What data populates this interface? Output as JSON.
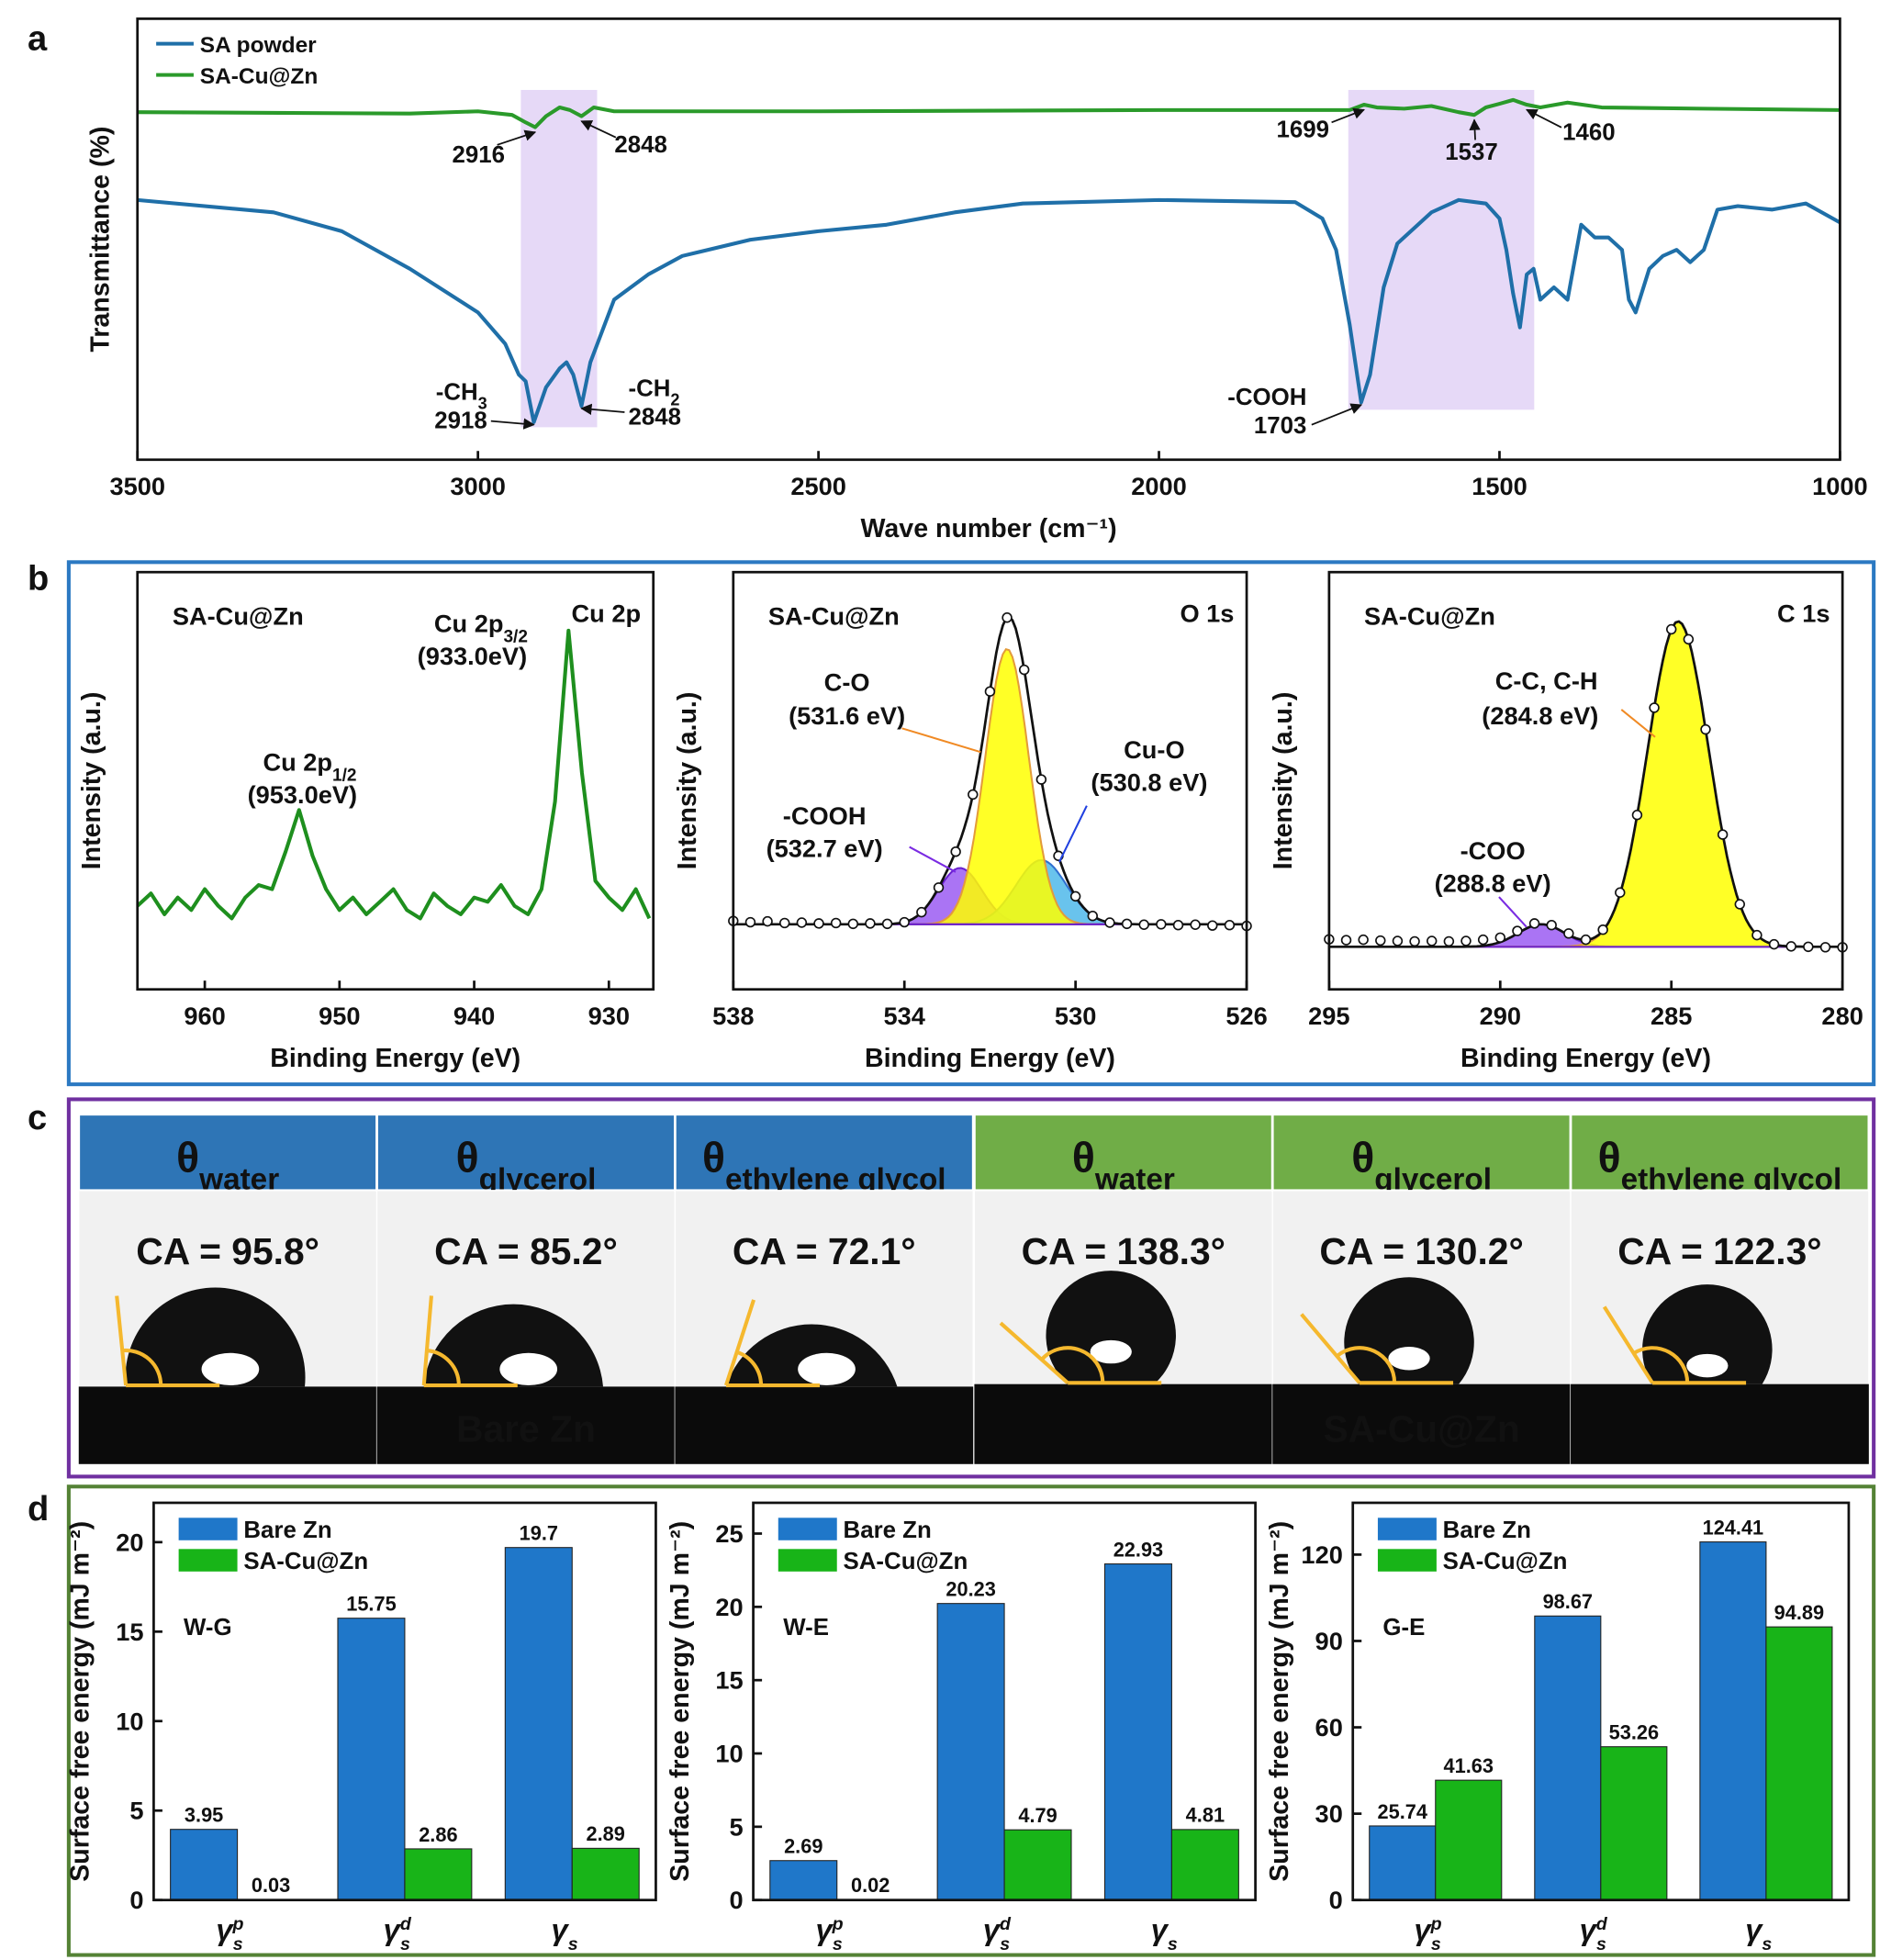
{
  "panel_labels": [
    "a",
    "b",
    "c",
    "d"
  ],
  "chart_data": [
    {
      "type": "line",
      "xlabel": "Wave number (cm⁻¹)",
      "ylabel": "Transmittance (%)",
      "xlim": [
        3500,
        1000
      ],
      "ylim": [
        0,
        100
      ],
      "xticks": [
        3500,
        3000,
        2500,
        2000,
        1500,
        1000
      ],
      "legend": "upper left",
      "series": [
        {
          "name": "SA powder",
          "color": "#1f6fa8",
          "x": [
            3500,
            3300,
            3200,
            3100,
            3000,
            2960,
            2940,
            2930,
            2918,
            2900,
            2880,
            2870,
            2860,
            2848,
            2835,
            2800,
            2750,
            2700,
            2600,
            2500,
            2400,
            2300,
            2200,
            2000,
            1800,
            1760,
            1740,
            1720,
            1703,
            1690,
            1670,
            1650,
            1600,
            1560,
            1520,
            1500,
            1490,
            1480,
            1470,
            1460,
            1450,
            1440,
            1420,
            1400,
            1380,
            1360,
            1340,
            1320,
            1310,
            1300,
            1280,
            1260,
            1240,
            1220,
            1200,
            1180,
            1150,
            1100,
            1050,
            1000
          ],
          "values": [
            58.9,
            56.1,
            51.8,
            43.3,
            33.4,
            26.3,
            19.3,
            17.8,
            8.5,
            16.4,
            20.7,
            22.1,
            19.3,
            12.2,
            22.1,
            36.3,
            42,
            46.2,
            49.9,
            51.8,
            53.3,
            56.1,
            58.1,
            58.9,
            58.4,
            54.7,
            47.6,
            30.6,
            13,
            19.3,
            39.1,
            49,
            56.1,
            58.9,
            58.1,
            54.7,
            47.6,
            37.7,
            30,
            42,
            43.3,
            36.3,
            39.1,
            36.3,
            53.3,
            50.4,
            50.4,
            47.6,
            36.3,
            33.4,
            43.3,
            46.2,
            47.6,
            44.8,
            47.6,
            56.7,
            57.5,
            56.7,
            58.1,
            53.8
          ]
        },
        {
          "name": "SA-Cu@Zn",
          "color": "#2a9a2a",
          "x": [
            3500,
            3100,
            3000,
            2950,
            2930,
            2916,
            2900,
            2880,
            2865,
            2848,
            2830,
            2800,
            2500,
            2000,
            1750,
            1720,
            1699,
            1680,
            1640,
            1600,
            1560,
            1537,
            1520,
            1500,
            1480,
            1460,
            1440,
            1400,
            1350,
            1200,
            1000
          ],
          "values": [
            78.8,
            78.5,
            79,
            78.2,
            76.5,
            75.4,
            77.9,
            79.9,
            79.3,
            77.9,
            79.9,
            79,
            79,
            79.3,
            79.3,
            79.3,
            80.5,
            79.9,
            79.6,
            80.2,
            78.8,
            78.2,
            79.9,
            80.7,
            81.6,
            80.5,
            79.9,
            81,
            79.9,
            79.6,
            79.3
          ]
        }
      ],
      "highlights": [
        {
          "from": 2937,
          "to": 2825
        },
        {
          "from": 1722,
          "to": 1449
        }
      ],
      "highlight_color": "#e6d9f7",
      "annotations": [
        {
          "text": "2916",
          "x": 2916,
          "y": 75.4
        },
        {
          "text": "2848",
          "x": 2848,
          "y": 77.9
        },
        {
          "text": "1699",
          "x": 1699,
          "y": 80.5
        },
        {
          "text": "1537",
          "x": 1537,
          "y": 78.2
        },
        {
          "text": "1460",
          "x": 1460,
          "y": 80.5
        },
        {
          "text": "2918",
          "x": 2918,
          "y": 8.5,
          "group": {
            "text": "-CH",
            "sub": "3"
          }
        },
        {
          "text": "2848",
          "x": 2848,
          "y": 12.2,
          "group": {
            "text": "-CH",
            "sub": "2"
          }
        },
        {
          "text": "1703",
          "x": 1703,
          "y": 13,
          "group": {
            "text": "-COOH"
          }
        }
      ],
      "group_color": "#7a2be2"
    },
    {
      "type": "line",
      "sample": "SA-Cu@Zn",
      "region": "Cu 2p",
      "xlabel": "Binding Energy (eV)",
      "ylabel": "Intensity (a.u.)",
      "xlim": [
        965,
        926.7
      ],
      "ylim": [
        0,
        100
      ],
      "xticks": [
        960,
        950,
        940,
        930
      ],
      "series": [
        {
          "color": "#1e8f1e",
          "x": [
            965,
            964,
            963,
            962,
            961,
            960,
            959,
            958,
            957,
            956,
            955,
            954,
            953,
            952,
            951,
            950,
            949,
            948,
            947,
            946,
            945,
            944,
            943,
            942,
            941,
            940,
            939,
            938,
            937,
            936,
            935,
            934,
            933,
            932,
            931,
            930,
            929,
            928,
            927
          ],
          "values": [
            20,
            23,
            18,
            22,
            19,
            24,
            20,
            17,
            22,
            25,
            24,
            33,
            43,
            32,
            24,
            19,
            22,
            18,
            21,
            24,
            19,
            17,
            23,
            20,
            18,
            22,
            21,
            25,
            20,
            18,
            24,
            45,
            86,
            52,
            26,
            22,
            19,
            24,
            17
          ]
        }
      ],
      "peaks": [
        {
          "text": "Cu 2p",
          "sub": "1/2",
          "energy": "(953.0eV)",
          "x": 953
        },
        {
          "text": "Cu 2p",
          "sub": "3/2",
          "energy": "(933.0eV)",
          "x": 933
        }
      ],
      "label_color": "#2a9d7a"
    },
    {
      "type": "peak_fit",
      "sample": "SA-Cu@Zn",
      "region": "O 1s",
      "xlabel": "Binding Energy (eV)",
      "ylabel": "Intensity (a.u.)",
      "xlim": [
        538,
        526
      ],
      "ylim": [
        0,
        100
      ],
      "xticks": [
        538,
        534,
        530,
        526
      ],
      "x": [
        538,
        537.6,
        537.2,
        536.8,
        536.4,
        536,
        535.6,
        535.2,
        534.8,
        534.4,
        534,
        533.6,
        533.2,
        532.8,
        532.4,
        532,
        531.6,
        531.2,
        530.8,
        530.4,
        530,
        529.6,
        529.2,
        528.8,
        528.4,
        528,
        527.6,
        527.2,
        526.8,
        526.4,
        526
      ],
      "values": [
        16.4,
        16.1,
        16.3,
        15.9,
        16.0,
        15.8,
        15.9,
        15.7,
        15.8,
        15.7,
        16.1,
        18.5,
        24.4,
        33.0,
        46.7,
        71.4,
        89.1,
        76.6,
        50.3,
        32.0,
        22.3,
        17.6,
        16.0,
        15.7,
        15.5,
        15.6,
        15.4,
        15.5,
        15.3,
        15.4,
        15.2
      ],
      "baseline": 15.6,
      "components": [
        {
          "name": "-COOH",
          "label": "(532.7 eV)",
          "center": 532.7,
          "height": 13.5,
          "fwhm": 1.2,
          "color": "#9b5cf2",
          "edge": "#6a1fd0",
          "text_color": "#7a2be2"
        },
        {
          "name": "Cu-O",
          "label": "(530.8 eV)",
          "center": 530.8,
          "height": 15.4,
          "fwhm": 1.4,
          "color": "#4fb8ea",
          "edge": "#2f6fd0",
          "text_color": "#2040e0"
        },
        {
          "name": "C-O",
          "label": "(531.6 eV)",
          "center": 531.6,
          "height": 66,
          "fwhm": 1.2,
          "color": "#ffff00",
          "edge": "#e39b3a",
          "text_color": "#f08a24"
        }
      ]
    },
    {
      "type": "peak_fit",
      "sample": "SA-Cu@Zn",
      "region": "C 1s",
      "xlabel": "Binding Energy (eV)",
      "ylabel": "Intensity (a.u.)",
      "xlim": [
        295,
        280
      ],
      "ylim": [
        0,
        100
      ],
      "xticks": [
        295,
        290,
        285,
        280
      ],
      "x": [
        295,
        294.5,
        294,
        293.5,
        293,
        292.5,
        292,
        291.5,
        291,
        290.5,
        290,
        289.5,
        289,
        288.5,
        288,
        287.5,
        287,
        286.5,
        286,
        285.5,
        285,
        284.5,
        284,
        283.5,
        283,
        282.5,
        282,
        281.5,
        281,
        280.5,
        280
      ],
      "values": [
        12.0,
        11.8,
        11.9,
        11.7,
        11.6,
        11.5,
        11.6,
        11.5,
        11.6,
        11.9,
        12.4,
        14.0,
        15.8,
        15.4,
        13.4,
        11.9,
        14.3,
        23.2,
        41.8,
        67.5,
        86.3,
        83.9,
        62.3,
        37.1,
        20.4,
        13.0,
        10.8,
        10.3,
        10.2,
        10.1,
        10.1
      ],
      "baseline": 10.2,
      "components": [
        {
          "name": "-COO",
          "label": "(288.8 eV)",
          "center": 288.8,
          "height": 5.4,
          "fwhm": 1.6,
          "color": "#9b5cf2",
          "edge": "#6a1fd0",
          "text_color": "#7a2be2"
        },
        {
          "name": "C-C, C-H",
          "label": "(284.8 eV)",
          "center": 284.8,
          "height": 78,
          "fwhm": 2.1,
          "color": "#ffff00",
          "edge": "#e39b3a",
          "text_color": "#f08a24"
        }
      ]
    },
    {
      "type": "bar",
      "ylabel": "Surface free energy (mJ m⁻²)",
      "note": "W-G",
      "legend": "upper left",
      "categories": [
        {
          "base": "γ",
          "sub": "s",
          "sup": "p"
        },
        {
          "base": "γ",
          "sub": "s",
          "sup": "d"
        },
        {
          "base": "γ",
          "sub": "s"
        }
      ],
      "ylim": [
        0,
        22.2
      ],
      "yticks": [
        0,
        5,
        10,
        15,
        20
      ],
      "series": [
        {
          "name": "Bare Zn",
          "color": "#1f77c9",
          "values": [
            3.95,
            15.75,
            19.7
          ]
        },
        {
          "name": "SA-Cu@Zn",
          "color": "#18b418",
          "values": [
            0.03,
            2.86,
            2.89
          ]
        }
      ]
    },
    {
      "type": "bar",
      "ylabel": "Surface free energy (mJ m⁻²)",
      "note": "W-E",
      "legend": "upper left",
      "categories": [
        {
          "base": "γ",
          "sub": "s",
          "sup": "p"
        },
        {
          "base": "γ",
          "sub": "s",
          "sup": "d"
        },
        {
          "base": "γ",
          "sub": "s"
        }
      ],
      "ylim": [
        0,
        27.1
      ],
      "yticks": [
        0,
        5,
        10,
        15,
        20,
        25
      ],
      "series": [
        {
          "name": "Bare Zn",
          "color": "#1f77c9",
          "values": [
            2.69,
            20.23,
            22.93
          ]
        },
        {
          "name": "SA-Cu@Zn",
          "color": "#18b418",
          "values": [
            0.02,
            4.79,
            4.81
          ]
        }
      ]
    },
    {
      "type": "bar",
      "ylabel": "Surface free energy (mJ m⁻²)",
      "note": "G-E",
      "legend": "upper left",
      "categories": [
        {
          "base": "γ",
          "sub": "s",
          "sup": "p"
        },
        {
          "base": "γ",
          "sub": "s",
          "sup": "d"
        },
        {
          "base": "γ",
          "sub": "s"
        }
      ],
      "ylim": [
        0,
        138
      ],
      "yticks": [
        0,
        30,
        60,
        90,
        120
      ],
      "series": [
        {
          "name": "Bare Zn",
          "color": "#1f77c9",
          "values": [
            25.74,
            98.67,
            124.41
          ]
        },
        {
          "name": "SA-Cu@Zn",
          "color": "#18b418",
          "values": [
            41.63,
            53.26,
            94.89
          ]
        }
      ]
    }
  ],
  "contact_angle": {
    "angle_line_color": "#f5b82e",
    "groups": [
      {
        "name": "Bare Zn",
        "header_color": "#2e75b6",
        "label_color": "#2e75b6",
        "headers": [
          {
            "symbol": "θ",
            "sub": "water"
          },
          {
            "symbol": "θ",
            "sub": "glycerol"
          },
          {
            "symbol": "θ",
            "sub": "ethylene glycol"
          }
        ],
        "values": [
          95.8,
          85.2,
          72.1
        ],
        "value_labels": [
          "CA = 95.8°",
          "CA = 85.2°",
          "CA = 72.1°"
        ]
      },
      {
        "name": "SA-Cu@Zn",
        "header_color": "#70ad47",
        "label_color": "#1fad4f",
        "headers": [
          {
            "symbol": "θ",
            "sub": "water"
          },
          {
            "symbol": "θ",
            "sub": "glycerol"
          },
          {
            "symbol": "θ",
            "sub": "ethylene glycol"
          }
        ],
        "values": [
          138.3,
          130.2,
          122.3
        ],
        "value_labels": [
          "CA = 138.3°",
          "CA = 130.2°",
          "CA = 122.3°"
        ]
      }
    ]
  }
}
